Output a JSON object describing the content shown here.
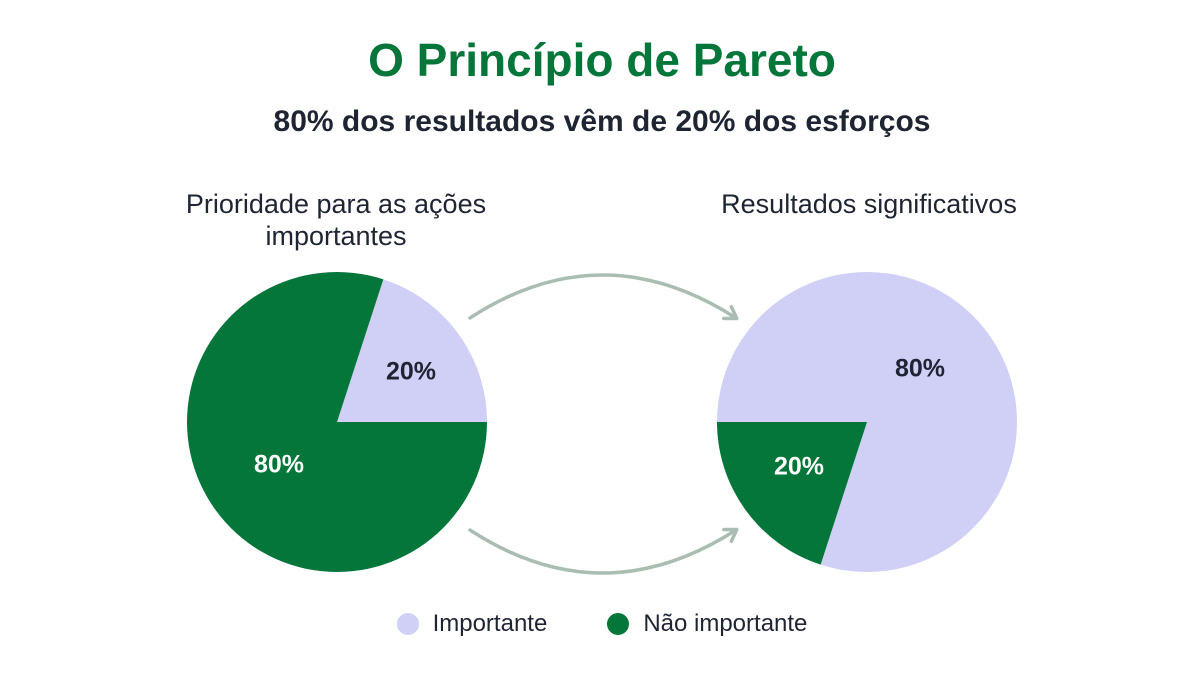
{
  "title": "O Princípio de Pareto",
  "subtitle": "80% dos resultados vêm de 20% dos esforços",
  "colors": {
    "title": "#04763a",
    "important": "#d0cff6",
    "not_important": "#04763a",
    "arrow": "#a9bdb2",
    "label_dark": "#1f2433",
    "label_light": "#ffffff"
  },
  "chart_data": [
    {
      "type": "pie",
      "title": "Prioridade para as ações importantes",
      "slices": [
        {
          "label": "Importante",
          "value": 20,
          "display": "20%",
          "color": "#d0cff6"
        },
        {
          "label": "Não importante",
          "value": 80,
          "display": "80%",
          "color": "#04763a"
        }
      ]
    },
    {
      "type": "pie",
      "title": "Resultados significativos",
      "slices": [
        {
          "label": "Importante",
          "value": 80,
          "display": "80%",
          "color": "#d0cff6"
        },
        {
          "label": "Não importante",
          "value": 20,
          "display": "20%",
          "color": "#04763a"
        }
      ]
    }
  ],
  "legend": [
    {
      "label": "Importante",
      "color": "#d0cff6"
    },
    {
      "label": "Não importante",
      "color": "#04763a"
    }
  ]
}
